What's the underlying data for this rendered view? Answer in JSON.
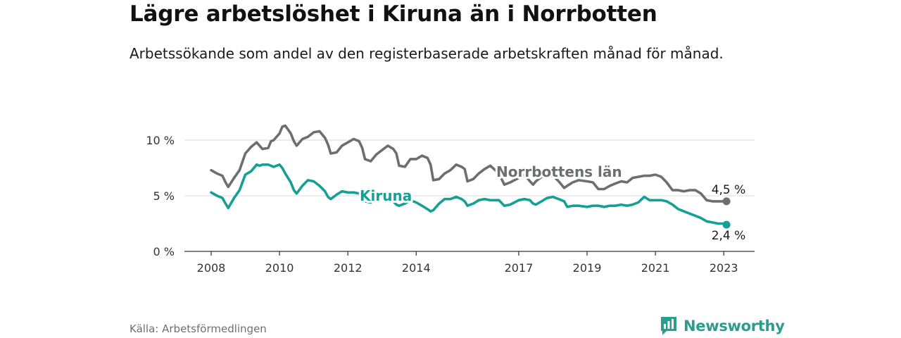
{
  "title": "Lägre arbetslöshet i Kiruna än i Norrbotten",
  "subtitle": "Arbetssökande som andel av den registerbaserade arbetskraften månad för månad.",
  "source": "Källa: Arbetsförmedlingen",
  "brand": {
    "name": "Newsworthy",
    "logo_icon": "bar-chart-speech-bubble-icon"
  },
  "colors": {
    "norrbotten": "#6d6e71",
    "kiruna": "#16a095",
    "grid": "#d9d9d9",
    "axis": "#333333",
    "brand": "#2a9d8f"
  },
  "chart_data": {
    "type": "line",
    "title": "Lägre arbetslöshet i Kiruna än i Norrbotten",
    "xlabel": "",
    "ylabel": "",
    "xlim": [
      2008,
      2023.2
    ],
    "ylim": [
      0,
      10
    ],
    "y_ticks": [
      0,
      5,
      10
    ],
    "y_tick_labels": [
      "0 %",
      "5 %",
      "10 %"
    ],
    "x_ticks": [
      2008,
      2010,
      2012,
      2014,
      2017,
      2019,
      2021,
      2023
    ],
    "x_tick_labels": [
      "2008",
      "2010",
      "2012",
      "2014",
      "2017",
      "2019",
      "2021",
      "2023"
    ],
    "grid": true,
    "legend": "inline labels",
    "series": [
      {
        "name": "Norrbottens län",
        "label": "Norrbottens län",
        "end_label": "4,5 %",
        "x": [
          2008.0,
          2008.17,
          2008.33,
          2008.42,
          2008.5,
          2008.67,
          2008.83,
          2009.0,
          2009.17,
          2009.33,
          2009.5,
          2009.67,
          2009.75,
          2009.83,
          2010.0,
          2010.08,
          2010.17,
          2010.33,
          2010.42,
          2010.5,
          2010.67,
          2010.83,
          2011.0,
          2011.17,
          2011.33,
          2011.42,
          2011.5,
          2011.67,
          2011.83,
          2012.0,
          2012.17,
          2012.33,
          2012.42,
          2012.5,
          2012.67,
          2012.83,
          2013.0,
          2013.17,
          2013.33,
          2013.42,
          2013.5,
          2013.67,
          2013.83,
          2014.0,
          2014.17,
          2014.33,
          2014.42,
          2014.5,
          2014.67,
          2014.83,
          2015.0,
          2015.17,
          2015.33,
          2015.42,
          2015.5,
          2015.67,
          2015.83,
          2016.0,
          2016.17,
          2016.42,
          2016.58,
          2016.75,
          2017.0,
          2017.17,
          2017.33,
          2017.42,
          2017.5,
          2017.67,
          2017.83,
          2018.0,
          2018.17,
          2018.33,
          2018.42,
          2018.58,
          2018.75,
          2019.0,
          2019.17,
          2019.33,
          2019.5,
          2019.67,
          2019.83,
          2020.0,
          2020.17,
          2020.33,
          2020.5,
          2020.67,
          2020.83,
          2021.0,
          2021.17,
          2021.33,
          2021.5,
          2021.67,
          2021.83,
          2022.0,
          2022.17,
          2022.33,
          2022.5,
          2022.67,
          2022.83,
          2023.0,
          2023.08
        ],
        "values": [
          7.3,
          7.0,
          6.8,
          6.2,
          5.8,
          6.6,
          7.3,
          8.8,
          9.4,
          9.8,
          9.2,
          9.3,
          9.9,
          10.0,
          10.6,
          11.2,
          11.3,
          10.6,
          9.9,
          9.5,
          10.1,
          10.3,
          10.7,
          10.8,
          10.2,
          9.6,
          8.8,
          8.9,
          9.5,
          9.8,
          10.1,
          9.9,
          9.3,
          8.3,
          8.1,
          8.7,
          9.1,
          9.5,
          9.2,
          8.8,
          7.7,
          7.6,
          8.3,
          8.3,
          8.6,
          8.4,
          7.8,
          6.4,
          6.5,
          7.0,
          7.3,
          7.8,
          7.6,
          7.4,
          6.3,
          6.5,
          7.0,
          7.4,
          7.7,
          7.0,
          6.0,
          6.2,
          6.6,
          6.9,
          6.3,
          6.0,
          6.3,
          6.7,
          6.7,
          6.8,
          6.3,
          5.7,
          5.9,
          6.2,
          6.4,
          6.3,
          6.2,
          5.6,
          5.6,
          5.9,
          6.1,
          6.3,
          6.2,
          6.6,
          6.7,
          6.8,
          6.8,
          6.9,
          6.7,
          6.2,
          5.5,
          5.5,
          5.4,
          5.5,
          5.5,
          5.2,
          4.6,
          4.5,
          4.5,
          4.5,
          4.5
        ]
      },
      {
        "name": "Kiruna",
        "label": "Kiruna",
        "end_label": "2,4 %",
        "x": [
          2008.0,
          2008.17,
          2008.33,
          2008.42,
          2008.5,
          2008.67,
          2008.83,
          2009.0,
          2009.17,
          2009.33,
          2009.42,
          2009.5,
          2009.67,
          2009.83,
          2010.0,
          2010.08,
          2010.17,
          2010.33,
          2010.42,
          2010.5,
          2010.67,
          2010.83,
          2011.0,
          2011.17,
          2011.33,
          2011.42,
          2011.5,
          2011.67,
          2011.83,
          2012.0,
          2012.17,
          2012.33,
          2012.42,
          2012.5,
          2012.67,
          2012.83,
          2013.0,
          2013.17,
          2013.33,
          2013.42,
          2013.5,
          2013.67,
          2013.83,
          2014.0,
          2014.17,
          2014.33,
          2014.42,
          2014.5,
          2014.67,
          2014.83,
          2015.0,
          2015.17,
          2015.33,
          2015.42,
          2015.5,
          2015.67,
          2015.83,
          2016.0,
          2016.17,
          2016.42,
          2016.58,
          2016.75,
          2017.0,
          2017.17,
          2017.33,
          2017.42,
          2017.5,
          2017.67,
          2017.83,
          2018.0,
          2018.17,
          2018.33,
          2018.42,
          2018.58,
          2018.75,
          2019.0,
          2019.17,
          2019.33,
          2019.5,
          2019.67,
          2019.83,
          2020.0,
          2020.17,
          2020.33,
          2020.5,
          2020.67,
          2020.83,
          2021.0,
          2021.17,
          2021.33,
          2021.5,
          2021.67,
          2021.83,
          2022.0,
          2022.17,
          2022.33,
          2022.5,
          2022.67,
          2022.83,
          2023.0,
          2023.08
        ],
        "values": [
          5.3,
          5.0,
          4.8,
          4.3,
          3.9,
          4.8,
          5.5,
          6.9,
          7.2,
          7.8,
          7.7,
          7.8,
          7.8,
          7.6,
          7.8,
          7.5,
          7.0,
          6.2,
          5.5,
          5.2,
          5.9,
          6.4,
          6.3,
          5.9,
          5.4,
          4.9,
          4.7,
          5.1,
          5.4,
          5.3,
          5.3,
          5.2,
          4.9,
          4.5,
          4.4,
          4.8,
          4.9,
          4.8,
          4.5,
          4.2,
          4.1,
          4.3,
          4.6,
          4.4,
          4.1,
          3.8,
          3.6,
          3.7,
          4.3,
          4.7,
          4.7,
          4.9,
          4.7,
          4.5,
          4.1,
          4.3,
          4.6,
          4.7,
          4.6,
          4.6,
          4.1,
          4.2,
          4.6,
          4.7,
          4.6,
          4.3,
          4.2,
          4.5,
          4.8,
          4.9,
          4.7,
          4.5,
          4.0,
          4.1,
          4.1,
          4.0,
          4.1,
          4.1,
          4.0,
          4.1,
          4.1,
          4.2,
          4.1,
          4.2,
          4.4,
          4.9,
          4.6,
          4.6,
          4.6,
          4.5,
          4.2,
          3.8,
          3.6,
          3.4,
          3.2,
          3.0,
          2.7,
          2.6,
          2.5,
          2.5,
          2.4
        ]
      }
    ]
  }
}
